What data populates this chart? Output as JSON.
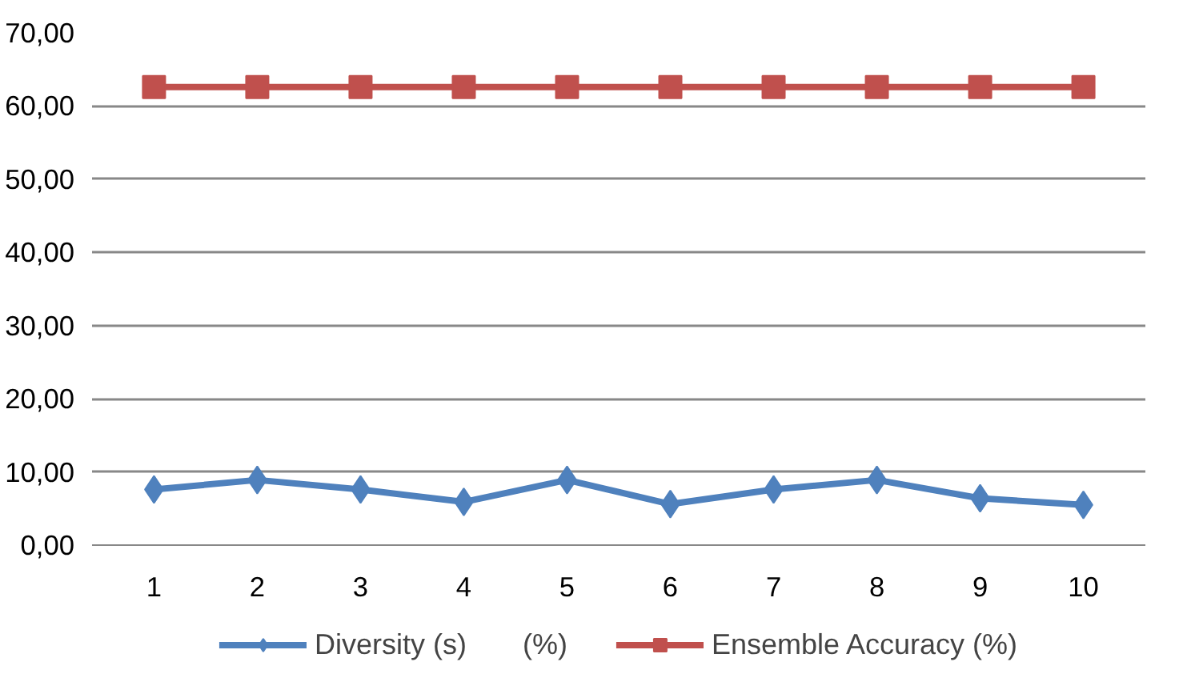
{
  "chart_data": {
    "type": "line",
    "categories": [
      "1",
      "2",
      "3",
      "4",
      "5",
      "6",
      "7",
      "8",
      "9",
      "10"
    ],
    "series": [
      {
        "name": "Diversity (s)       (%)",
        "color": "#4f81bd",
        "marker": "diamond",
        "values": [
          7.6,
          8.9,
          7.6,
          5.9,
          8.9,
          5.6,
          7.6,
          8.9,
          6.4,
          5.5
        ]
      },
      {
        "name": "Ensemble Accuracy (%)",
        "color": "#c0504d",
        "marker": "square",
        "values": [
          62.6,
          62.6,
          62.6,
          62.6,
          62.6,
          62.6,
          62.6,
          62.6,
          62.6,
          62.6
        ]
      }
    ],
    "ylim": [
      0,
      70
    ],
    "yticks": [
      {
        "value": 0,
        "label": "0,00"
      },
      {
        "value": 10,
        "label": "10,00"
      },
      {
        "value": 20,
        "label": "20,00"
      },
      {
        "value": 30,
        "label": "30,00"
      },
      {
        "value": 40,
        "label": "40,00"
      },
      {
        "value": 50,
        "label": "50,00"
      },
      {
        "value": 60,
        "label": "60,00"
      },
      {
        "value": 70,
        "label": "70,00"
      }
    ],
    "grid": "y",
    "legend": "bottom"
  }
}
